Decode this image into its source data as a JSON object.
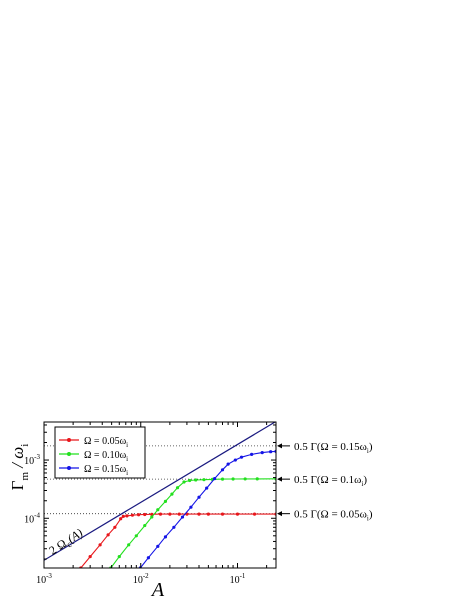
{
  "chart_data": {
    "type": "line",
    "x_scale": "log",
    "y_scale": "log",
    "xlabel": "A",
    "ylabel_main": "Γ",
    "ylabel_sub1": "m",
    "ylabel_slash": " / ω",
    "ylabel_sub2": "i",
    "xlim": [
      0.001,
      0.25
    ],
    "ylim": [
      1.4e-05,
      0.0045
    ],
    "x_ticks": [
      {
        "value": 0.001,
        "base": "10",
        "exp": "-3"
      },
      {
        "value": 0.01,
        "base": "10",
        "exp": "-2"
      },
      {
        "value": 0.1,
        "base": "10",
        "exp": "-1"
      }
    ],
    "y_ticks": [
      {
        "value": 0.0001,
        "base": "10",
        "exp": "-4"
      },
      {
        "value": 0.001,
        "base": "10",
        "exp": "-3"
      }
    ],
    "legend_position": "top-left",
    "series": [
      {
        "legend_prefix": "Ω = 0.05ω",
        "legend_sub": "i",
        "color": "#e8161b",
        "x": [
          0.0024,
          0.003,
          0.0038,
          0.0046,
          0.0054,
          0.0062,
          0.0066,
          0.0072,
          0.0082,
          0.0095,
          0.011,
          0.013,
          0.016,
          0.02,
          0.025,
          0.03,
          0.04,
          0.05,
          0.07,
          0.1,
          0.15,
          0.25
        ],
        "y": [
          1.4e-05,
          2.2e-05,
          3.5e-05,
          5.2e-05,
          7e-05,
          9.8e-05,
          0.000108,
          0.00011,
          0.000113,
          0.000115,
          0.000116,
          0.000117,
          0.000118,
          0.000118,
          0.000118,
          0.000118,
          0.000118,
          0.000118,
          0.000118,
          0.000118,
          0.000118,
          0.000118
        ]
      },
      {
        "legend_prefix": "Ω = 0.10ω",
        "legend_sub": "i",
        "color": "#22e01e",
        "x": [
          0.0049,
          0.006,
          0.0075,
          0.009,
          0.011,
          0.013,
          0.015,
          0.018,
          0.021,
          0.024,
          0.028,
          0.032,
          0.037,
          0.045,
          0.055,
          0.07,
          0.09,
          0.12,
          0.16,
          0.25
        ],
        "y": [
          1.4e-05,
          2.2e-05,
          3.5e-05,
          5e-05,
          7.5e-05,
          0.000105,
          0.00014,
          0.000195,
          0.00026,
          0.000335,
          0.00042,
          0.000445,
          0.000455,
          0.00046,
          0.000465,
          0.00047,
          0.000472,
          0.000474,
          0.000475,
          0.000476
        ]
      },
      {
        "legend_prefix": "Ω = 0.15ω",
        "legend_sub": "i",
        "color": "#1414e6",
        "x": [
          0.0099,
          0.012,
          0.015,
          0.018,
          0.022,
          0.027,
          0.033,
          0.04,
          0.048,
          0.058,
          0.07,
          0.08,
          0.095,
          0.11,
          0.14,
          0.18,
          0.22,
          0.25
        ],
        "y": [
          1.4e-05,
          2.1e-05,
          3.3e-05,
          4.8e-05,
          7e-05,
          0.000105,
          0.000155,
          0.00023,
          0.00033,
          0.00048,
          0.00068,
          0.00085,
          0.001,
          0.00112,
          0.00125,
          0.00134,
          0.00139,
          0.00141
        ]
      }
    ],
    "reference_line": {
      "label_prefix": "2 Ω",
      "label_sub": "c",
      "label_suffix": "(A)",
      "color": "#1a1a80",
      "x": [
        0.001,
        0.25
      ],
      "y": [
        1.9e-05,
        0.0046
      ]
    },
    "hlines": [
      {
        "value": 0.00175,
        "label": "0.5 Γ(Ω = 0.15ω",
        "label_sub": "i",
        "label_end": ")"
      },
      {
        "value": 0.00047,
        "label": "0.5 Γ(Ω = 0.1ω",
        "label_sub": "i",
        "label_end": ")"
      },
      {
        "value": 0.00012,
        "label": "0.5 Γ(Ω = 0.05ω",
        "label_sub": "i",
        "label_end": ")"
      }
    ]
  }
}
